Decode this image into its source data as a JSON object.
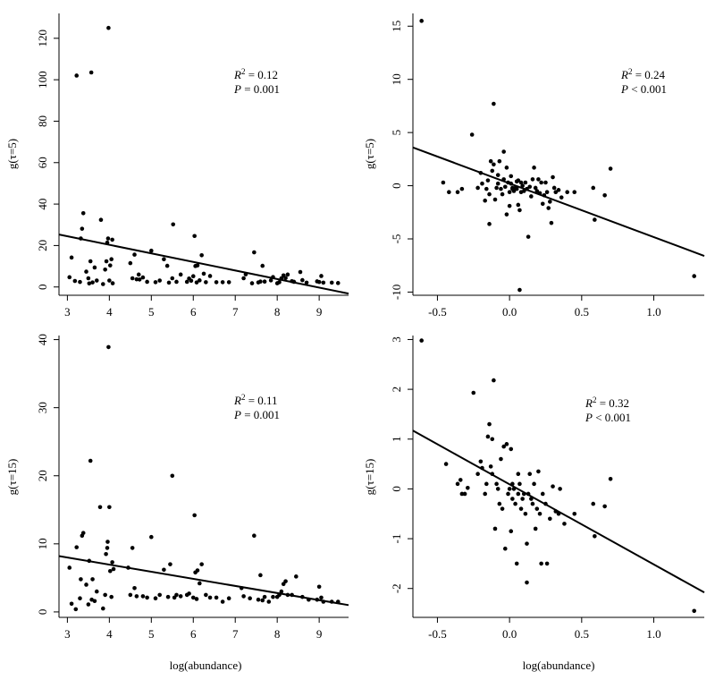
{
  "chart_data": [
    {
      "type": "scatter",
      "ylabel": "g(τ=5)",
      "xlabel": "",
      "xlim": [
        2.8,
        9.7
      ],
      "ylim": [
        -4,
        132
      ],
      "xticks": [
        "3",
        "4",
        "5",
        "6",
        "7",
        "8",
        "9"
      ],
      "yticks": [
        "0",
        "20",
        "40",
        "60",
        "80",
        "100",
        "120"
      ],
      "annotation": {
        "r2_label": "R",
        "r2_sup": "2",
        "r2_value": " = 0.12",
        "p_label": "P",
        "p_value": " = 0.001"
      },
      "fit_line": {
        "x": [
          2.8,
          9.7
        ],
        "y": [
          25.3,
          -3.2
        ]
      },
      "points": [
        [
          3.05,
          4.7
        ],
        [
          3.1,
          14.2
        ],
        [
          3.18,
          2.9
        ],
        [
          3.22,
          102
        ],
        [
          3.3,
          2.4
        ],
        [
          3.32,
          23.4
        ],
        [
          3.35,
          28.1
        ],
        [
          3.38,
          35.6
        ],
        [
          3.45,
          7.4
        ],
        [
          3.5,
          4.2
        ],
        [
          3.52,
          1.7
        ],
        [
          3.55,
          12.4
        ],
        [
          3.57,
          103.5
        ],
        [
          3.6,
          2.2
        ],
        [
          3.65,
          9.4
        ],
        [
          3.7,
          3.1
        ],
        [
          3.8,
          32.4
        ],
        [
          3.85,
          1.4
        ],
        [
          3.9,
          8.4
        ],
        [
          3.93,
          12.4
        ],
        [
          3.95,
          21.4
        ],
        [
          3.97,
          23.4
        ],
        [
          3.98,
          125
        ],
        [
          4.0,
          3.1
        ],
        [
          4.02,
          10.4
        ],
        [
          4.05,
          13.4
        ],
        [
          4.07,
          22.8
        ],
        [
          4.08,
          1.8
        ],
        [
          4.5,
          11.5
        ],
        [
          4.55,
          4.2
        ],
        [
          4.6,
          15.6
        ],
        [
          4.65,
          3.7
        ],
        [
          4.7,
          6.0
        ],
        [
          4.72,
          3.6
        ],
        [
          4.8,
          4.6
        ],
        [
          4.9,
          2.5
        ],
        [
          5.0,
          17.5
        ],
        [
          5.1,
          2.3
        ],
        [
          5.2,
          3.1
        ],
        [
          5.3,
          13.4
        ],
        [
          5.38,
          10.2
        ],
        [
          5.42,
          2.1
        ],
        [
          5.5,
          4.2
        ],
        [
          5.52,
          30.2
        ],
        [
          5.6,
          2.5
        ],
        [
          5.7,
          6.0
        ],
        [
          5.85,
          2.5
        ],
        [
          5.9,
          4.1
        ],
        [
          5.95,
          3.0
        ],
        [
          6.0,
          5.2
        ],
        [
          6.03,
          24.6
        ],
        [
          6.05,
          10.1
        ],
        [
          6.08,
          2.2
        ],
        [
          6.1,
          10.4
        ],
        [
          6.15,
          3.2
        ],
        [
          6.2,
          15.3
        ],
        [
          6.25,
          6.4
        ],
        [
          6.3,
          2.3
        ],
        [
          6.4,
          5.3
        ],
        [
          6.55,
          2.3
        ],
        [
          6.7,
          2.3
        ],
        [
          6.85,
          2.3
        ],
        [
          7.2,
          4.2
        ],
        [
          7.25,
          6.1
        ],
        [
          7.4,
          1.8
        ],
        [
          7.45,
          16.7
        ],
        [
          7.55,
          2.2
        ],
        [
          7.6,
          2.6
        ],
        [
          7.65,
          10.2
        ],
        [
          7.7,
          2.6
        ],
        [
          7.85,
          3.2
        ],
        [
          7.9,
          4.8
        ],
        [
          8.0,
          1.8
        ],
        [
          8.05,
          2.3
        ],
        [
          8.1,
          4.2
        ],
        [
          8.15,
          5.6
        ],
        [
          8.2,
          4.3
        ],
        [
          8.25,
          6.0
        ],
        [
          8.35,
          2.8
        ],
        [
          8.4,
          2.5
        ],
        [
          8.55,
          7.2
        ],
        [
          8.6,
          3.3
        ],
        [
          8.7,
          2.1
        ],
        [
          8.95,
          2.7
        ],
        [
          9.0,
          2.4
        ],
        [
          9.05,
          5.3
        ],
        [
          9.1,
          2.1
        ],
        [
          9.3,
          2.1
        ],
        [
          9.45,
          1.9
        ]
      ]
    },
    {
      "type": "scatter",
      "ylabel": "g(τ=5)",
      "xlabel": "",
      "xlim": [
        -0.67,
        1.35
      ],
      "ylim": [
        -10.3,
        16.2
      ],
      "xticks": [
        "-0.5",
        "0.0",
        "0.5",
        "1.0"
      ],
      "yticks": [
        "-10",
        "-5",
        "0",
        "5",
        "10",
        "15"
      ],
      "annotation": {
        "r2_label": "R",
        "r2_sup": "2",
        "r2_value": " = 0.24",
        "p_label": "P",
        "p_value": " < 0.001"
      },
      "fit_line": {
        "x": [
          -0.67,
          1.35
        ],
        "y": [
          3.6,
          -6.6
        ]
      },
      "points": [
        [
          -0.61,
          15.5
        ],
        [
          -0.46,
          0.3
        ],
        [
          -0.42,
          -0.6
        ],
        [
          -0.36,
          -0.6
        ],
        [
          -0.33,
          -0.3
        ],
        [
          -0.26,
          4.8
        ],
        [
          -0.22,
          -0.2
        ],
        [
          -0.2,
          1.2
        ],
        [
          -0.19,
          0.2
        ],
        [
          -0.17,
          -1.4
        ],
        [
          -0.16,
          -0.3
        ],
        [
          -0.15,
          0.5
        ],
        [
          -0.14,
          -0.8
        ],
        [
          -0.14,
          -3.6
        ],
        [
          -0.13,
          2.3
        ],
        [
          -0.12,
          1.4
        ],
        [
          -0.11,
          7.7
        ],
        [
          -0.11,
          2.0
        ],
        [
          -0.1,
          -1.3
        ],
        [
          -0.09,
          -0.2
        ],
        [
          -0.08,
          1.0
        ],
        [
          -0.08,
          0.2
        ],
        [
          -0.07,
          2.3
        ],
        [
          -0.06,
          -0.3
        ],
        [
          -0.05,
          -0.8
        ],
        [
          -0.04,
          0.6
        ],
        [
          -0.04,
          3.2
        ],
        [
          -0.03,
          -0.1
        ],
        [
          -0.02,
          -2.7
        ],
        [
          -0.02,
          1.7
        ],
        [
          -0.01,
          0.3
        ],
        [
          0.0,
          -0.6
        ],
        [
          0.0,
          -1.9
        ],
        [
          0.01,
          0.2
        ],
        [
          0.01,
          0.9
        ],
        [
          0.02,
          -0.3
        ],
        [
          0.02,
          -0.2
        ],
        [
          0.03,
          -0.5
        ],
        [
          0.04,
          -0.2
        ],
        [
          0.05,
          -0.3
        ],
        [
          0.05,
          0.4
        ],
        [
          0.06,
          0.5
        ],
        [
          0.06,
          -1.8
        ],
        [
          0.07,
          -2.3
        ],
        [
          0.07,
          -9.8
        ],
        [
          0.08,
          0.3
        ],
        [
          0.08,
          -0.6
        ],
        [
          0.09,
          0.0
        ],
        [
          0.1,
          -0.5
        ],
        [
          0.11,
          0.3
        ],
        [
          0.12,
          -0.3
        ],
        [
          0.13,
          -4.8
        ],
        [
          0.14,
          -0.1
        ],
        [
          0.15,
          -1.0
        ],
        [
          0.16,
          0.6
        ],
        [
          0.17,
          1.7
        ],
        [
          0.18,
          -0.2
        ],
        [
          0.19,
          -0.5
        ],
        [
          0.2,
          0.6
        ],
        [
          0.21,
          -0.7
        ],
        [
          0.22,
          0.3
        ],
        [
          0.23,
          -1.7
        ],
        [
          0.24,
          -0.9
        ],
        [
          0.25,
          0.3
        ],
        [
          0.26,
          -0.6
        ],
        [
          0.27,
          -2.1
        ],
        [
          0.28,
          -1.5
        ],
        [
          0.29,
          -3.5
        ],
        [
          0.3,
          0.8
        ],
        [
          0.31,
          -0.2
        ],
        [
          0.32,
          -0.6
        ],
        [
          0.34,
          -0.4
        ],
        [
          0.36,
          -1.1
        ],
        [
          0.4,
          -0.6
        ],
        [
          0.45,
          -0.6
        ],
        [
          0.58,
          -0.2
        ],
        [
          0.59,
          -3.2
        ],
        [
          0.66,
          -0.9
        ],
        [
          0.7,
          1.6
        ],
        [
          1.28,
          -8.5
        ]
      ]
    },
    {
      "type": "scatter",
      "ylabel": "g(τ=15)",
      "xlabel": "log(abundance)",
      "xlim": [
        2.8,
        9.7
      ],
      "ylim": [
        -0.8,
        40.6
      ],
      "xticks": [
        "3",
        "4",
        "5",
        "6",
        "7",
        "8",
        "9"
      ],
      "yticks": [
        "0",
        "10",
        "20",
        "30",
        "40"
      ],
      "annotation": {
        "r2_label": "R",
        "r2_sup": "2",
        "r2_value": " = 0.11",
        "p_label": "P",
        "p_value": " = 0.001"
      },
      "fit_line": {
        "x": [
          2.8,
          9.7
        ],
        "y": [
          8.2,
          1.0
        ]
      },
      "points": [
        [
          3.05,
          6.5
        ],
        [
          3.1,
          1.2
        ],
        [
          3.2,
          0.4
        ],
        [
          3.22,
          9.5
        ],
        [
          3.3,
          2.0
        ],
        [
          3.32,
          4.8
        ],
        [
          3.35,
          11.2
        ],
        [
          3.38,
          11.6
        ],
        [
          3.45,
          4.0
        ],
        [
          3.5,
          1.1
        ],
        [
          3.52,
          7.5
        ],
        [
          3.55,
          22.2
        ],
        [
          3.58,
          1.8
        ],
        [
          3.6,
          4.8
        ],
        [
          3.65,
          1.6
        ],
        [
          3.7,
          3.0
        ],
        [
          3.78,
          15.4
        ],
        [
          3.85,
          0.5
        ],
        [
          3.9,
          2.5
        ],
        [
          3.92,
          8.5
        ],
        [
          3.95,
          9.4
        ],
        [
          3.96,
          10.3
        ],
        [
          3.98,
          38.9
        ],
        [
          4.0,
          15.4
        ],
        [
          4.02,
          6.0
        ],
        [
          4.05,
          2.2
        ],
        [
          4.07,
          7.3
        ],
        [
          4.1,
          6.3
        ],
        [
          4.45,
          6.5
        ],
        [
          4.5,
          2.5
        ],
        [
          4.55,
          9.4
        ],
        [
          4.6,
          3.5
        ],
        [
          4.65,
          2.3
        ],
        [
          4.8,
          2.3
        ],
        [
          4.9,
          2.1
        ],
        [
          5.0,
          11.0
        ],
        [
          5.1,
          2.0
        ],
        [
          5.2,
          2.5
        ],
        [
          5.3,
          6.2
        ],
        [
          5.4,
          2.2
        ],
        [
          5.45,
          7.0
        ],
        [
          5.5,
          20.0
        ],
        [
          5.55,
          2.1
        ],
        [
          5.6,
          2.5
        ],
        [
          5.7,
          2.3
        ],
        [
          5.85,
          2.5
        ],
        [
          5.9,
          2.7
        ],
        [
          6.0,
          2.1
        ],
        [
          6.03,
          14.2
        ],
        [
          6.05,
          5.8
        ],
        [
          6.08,
          1.9
        ],
        [
          6.1,
          6.1
        ],
        [
          6.15,
          4.2
        ],
        [
          6.2,
          7.0
        ],
        [
          6.3,
          2.5
        ],
        [
          6.4,
          2.1
        ],
        [
          6.55,
          2.1
        ],
        [
          6.7,
          1.5
        ],
        [
          6.85,
          2.0
        ],
        [
          7.15,
          3.5
        ],
        [
          7.2,
          2.3
        ],
        [
          7.35,
          2.0
        ],
        [
          7.45,
          11.2
        ],
        [
          7.55,
          1.8
        ],
        [
          7.6,
          5.4
        ],
        [
          7.65,
          1.7
        ],
        [
          7.7,
          2.2
        ],
        [
          7.8,
          1.5
        ],
        [
          7.9,
          2.2
        ],
        [
          8.0,
          2.2
        ],
        [
          8.05,
          2.5
        ],
        [
          8.1,
          3.0
        ],
        [
          8.15,
          4.1
        ],
        [
          8.2,
          4.5
        ],
        [
          8.25,
          2.5
        ],
        [
          8.35,
          2.5
        ],
        [
          8.45,
          5.2
        ],
        [
          8.6,
          2.2
        ],
        [
          8.75,
          1.8
        ],
        [
          8.95,
          1.8
        ],
        [
          9.0,
          3.7
        ],
        [
          9.05,
          2.1
        ],
        [
          9.1,
          1.5
        ],
        [
          9.3,
          1.5
        ],
        [
          9.45,
          1.5
        ]
      ]
    },
    {
      "type": "scatter",
      "ylabel": "g(τ=15)",
      "xlabel": "log(abundance)",
      "xlim": [
        -0.67,
        1.35
      ],
      "ylim": [
        -2.58,
        3.08
      ],
      "xticks": [
        "-0.5",
        "0.0",
        "0.5",
        "1.0"
      ],
      "yticks": [
        "-2",
        "-1",
        "0",
        "1",
        "2",
        "3"
      ],
      "annotation": {
        "r2_label": "R",
        "r2_sup": "2",
        "r2_value": " = 0.32",
        "p_label": "P",
        "p_value": " < 0.001"
      },
      "fit_line": {
        "x": [
          -0.67,
          1.35
        ],
        "y": [
          1.17,
          -2.08
        ]
      },
      "points": [
        [
          -0.61,
          2.98
        ],
        [
          -0.44,
          0.5
        ],
        [
          -0.36,
          0.1
        ],
        [
          -0.34,
          0.18
        ],
        [
          -0.33,
          -0.1
        ],
        [
          -0.31,
          -0.1
        ],
        [
          -0.29,
          0.02
        ],
        [
          -0.25,
          1.93
        ],
        [
          -0.22,
          0.3
        ],
        [
          -0.2,
          0.55
        ],
        [
          -0.19,
          0.42
        ],
        [
          -0.17,
          -0.1
        ],
        [
          -0.16,
          0.1
        ],
        [
          -0.15,
          1.05
        ],
        [
          -0.14,
          1.3
        ],
        [
          -0.13,
          0.45
        ],
        [
          -0.12,
          1.0
        ],
        [
          -0.12,
          0.3
        ],
        [
          -0.11,
          2.18
        ],
        [
          -0.1,
          -0.8
        ],
        [
          -0.09,
          0.1
        ],
        [
          -0.08,
          0.0
        ],
        [
          -0.07,
          -0.3
        ],
        [
          -0.06,
          0.6
        ],
        [
          -0.05,
          -0.4
        ],
        [
          -0.04,
          0.85
        ],
        [
          -0.03,
          -1.2
        ],
        [
          -0.02,
          0.9
        ],
        [
          -0.01,
          -0.1
        ],
        [
          0.0,
          0.0
        ],
        [
          0.01,
          0.8
        ],
        [
          0.01,
          -0.85
        ],
        [
          0.02,
          0.1
        ],
        [
          0.02,
          -0.2
        ],
        [
          0.03,
          0.0
        ],
        [
          0.04,
          -0.3
        ],
        [
          0.05,
          -1.5
        ],
        [
          0.06,
          0.3
        ],
        [
          0.06,
          -0.1
        ],
        [
          0.07,
          0.1
        ],
        [
          0.08,
          -0.4
        ],
        [
          0.09,
          -0.2
        ],
        [
          0.1,
          -0.1
        ],
        [
          0.11,
          -0.5
        ],
        [
          0.12,
          -1.1
        ],
        [
          0.12,
          -1.88
        ],
        [
          0.13,
          -0.1
        ],
        [
          0.14,
          0.3
        ],
        [
          0.15,
          -0.2
        ],
        [
          0.16,
          -0.3
        ],
        [
          0.17,
          0.1
        ],
        [
          0.18,
          -0.8
        ],
        [
          0.19,
          -0.4
        ],
        [
          0.2,
          0.35
        ],
        [
          0.21,
          -0.5
        ],
        [
          0.22,
          -1.5
        ],
        [
          0.23,
          -0.1
        ],
        [
          0.25,
          -0.3
        ],
        [
          0.26,
          -1.5
        ],
        [
          0.28,
          -0.6
        ],
        [
          0.3,
          0.05
        ],
        [
          0.32,
          -0.45
        ],
        [
          0.34,
          -0.5
        ],
        [
          0.35,
          0.0
        ],
        [
          0.38,
          -0.7
        ],
        [
          0.45,
          -0.5
        ],
        [
          0.58,
          -0.3
        ],
        [
          0.59,
          -0.95
        ],
        [
          0.66,
          -0.35
        ],
        [
          0.7,
          0.2
        ],
        [
          1.28,
          -2.45
        ]
      ]
    }
  ]
}
